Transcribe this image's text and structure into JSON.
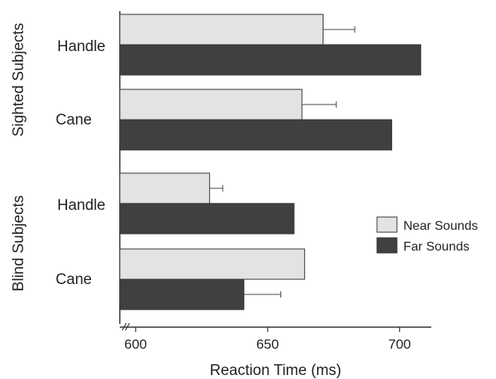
{
  "chart_data": {
    "type": "bar",
    "orientation": "horizontal",
    "xlabel": "Reaction Time (ms)",
    "xlim": [
      594,
      712
    ],
    "axis_break": true,
    "xticks": [
      600,
      650,
      700
    ],
    "groups": [
      {
        "label": "Sighted Subjects",
        "categories": [
          "Handle",
          "Cane"
        ]
      },
      {
        "label": "Blind Subjects",
        "categories": [
          "Handle",
          "Cane"
        ]
      }
    ],
    "series": [
      {
        "name": "Near Sounds",
        "color": "#e3e3e3",
        "values": [
          671,
          663,
          628,
          664
        ],
        "error_plus": [
          12,
          13,
          5,
          null
        ]
      },
      {
        "name": "Far Sounds",
        "color": "#404040",
        "values": [
          708,
          697,
          660,
          641
        ],
        "error_plus": [
          null,
          null,
          null,
          14
        ]
      }
    ],
    "legend": {
      "position": "right",
      "items": [
        "Near Sounds",
        "Far Sounds"
      ]
    },
    "grid": false
  }
}
